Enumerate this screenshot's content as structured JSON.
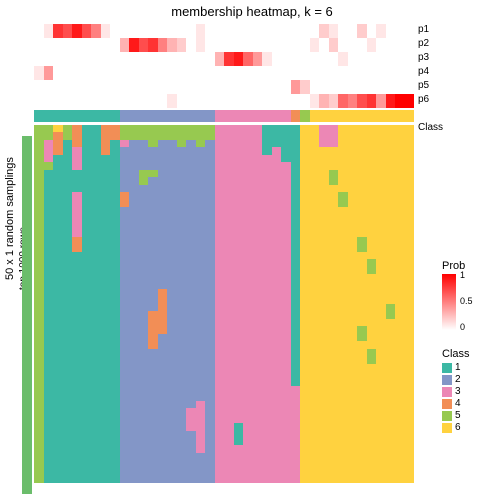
{
  "title": "membership heatmap, k = 6",
  "left_label_1": "50 x 1 random samplings",
  "left_label_2": "top 1000 rows",
  "p_labels": [
    "p1",
    "p2",
    "p3",
    "p4",
    "p5",
    "p6"
  ],
  "class_label": "Class",
  "prob_legend": {
    "title": "Prob",
    "ticks": [
      "1",
      "0.5",
      "0"
    ],
    "colors": [
      "#ff0000",
      "#ffffff"
    ]
  },
  "class_legend": {
    "title": "Class",
    "items": [
      {
        "label": "1",
        "color": "#3cb8a4"
      },
      {
        "label": "2",
        "color": "#8396c7"
      },
      {
        "label": "3",
        "color": "#ec87b5"
      },
      {
        "label": "4",
        "color": "#f28e56"
      },
      {
        "label": "5",
        "color": "#97c950"
      },
      {
        "label": "6",
        "color": "#ffd23f"
      }
    ]
  },
  "class_colors": [
    "#3cb8a4",
    "#8396c7",
    "#ec87b5",
    "#f28e56",
    "#97c950",
    "#ffd23f"
  ],
  "white": "#ffffff",
  "side_color": "#6bbd6b",
  "n_cols": 40,
  "n_rows": 48,
  "class_band": [
    0,
    0,
    0,
    0,
    0,
    0,
    0,
    0,
    0,
    1,
    1,
    1,
    1,
    1,
    1,
    1,
    1,
    1,
    1,
    2,
    2,
    2,
    2,
    2,
    2,
    2,
    2,
    3,
    4,
    5,
    5,
    5,
    5,
    5,
    5,
    5,
    5,
    5,
    5,
    5
  ],
  "p_matrix": [
    [
      0,
      0.1,
      0.8,
      0.7,
      0.9,
      0.7,
      0.5,
      0.1,
      0,
      0,
      0,
      0,
      0,
      0,
      0,
      0,
      0,
      0.1,
      0,
      0,
      0,
      0,
      0,
      0,
      0,
      0,
      0,
      0,
      0,
      0,
      0.2,
      0.1,
      0,
      0,
      0.2,
      0,
      0.1,
      0,
      0,
      0
    ],
    [
      0,
      0,
      0,
      0,
      0,
      0,
      0,
      0,
      0,
      0.3,
      0.9,
      0.7,
      0.8,
      0.5,
      0.3,
      0.2,
      0,
      0.1,
      0,
      0,
      0,
      0,
      0,
      0,
      0,
      0,
      0,
      0,
      0,
      0.1,
      0,
      0.2,
      0,
      0,
      0,
      0.1,
      0,
      0,
      0,
      0
    ],
    [
      0,
      0,
      0,
      0,
      0,
      0,
      0,
      0,
      0,
      0,
      0,
      0,
      0,
      0,
      0,
      0,
      0,
      0,
      0,
      0.3,
      0.8,
      0.9,
      0.6,
      0.4,
      0.1,
      0,
      0,
      0,
      0,
      0,
      0,
      0,
      0.1,
      0,
      0,
      0,
      0,
      0,
      0,
      0
    ],
    [
      0.1,
      0.4,
      0,
      0,
      0,
      0,
      0,
      0,
      0,
      0,
      0,
      0,
      0,
      0,
      0,
      0,
      0,
      0,
      0,
      0,
      0,
      0,
      0,
      0,
      0,
      0,
      0,
      0,
      0,
      0,
      0,
      0,
      0,
      0,
      0,
      0,
      0,
      0,
      0,
      0
    ],
    [
      0,
      0,
      0,
      0,
      0,
      0,
      0,
      0,
      0,
      0,
      0,
      0,
      0,
      0,
      0,
      0,
      0,
      0,
      0,
      0,
      0,
      0,
      0,
      0,
      0,
      0,
      0,
      0.4,
      0.2,
      0,
      0,
      0,
      0,
      0,
      0,
      0,
      0,
      0,
      0,
      0
    ],
    [
      0,
      0,
      0,
      0,
      0,
      0,
      0,
      0,
      0,
      0,
      0,
      0,
      0,
      0,
      0.1,
      0,
      0,
      0,
      0,
      0,
      0,
      0,
      0,
      0,
      0,
      0,
      0,
      0,
      0,
      0.1,
      0.3,
      0.2,
      0.6,
      0.5,
      0.7,
      0.8,
      0.4,
      0.9,
      1.0,
      1.0
    ]
  ],
  "heatmap_cols": [
    {
      "base": 4,
      "runs": [
        [
          0,
          48,
          4
        ]
      ]
    },
    {
      "base": 0,
      "runs": [
        [
          0,
          2,
          4
        ],
        [
          2,
          5,
          2
        ],
        [
          5,
          6,
          4
        ],
        [
          6,
          48,
          0
        ]
      ]
    },
    {
      "base": 0,
      "runs": [
        [
          0,
          1,
          5
        ],
        [
          1,
          4,
          3
        ],
        [
          4,
          48,
          0
        ]
      ]
    },
    {
      "base": 0,
      "runs": [
        [
          0,
          2,
          4
        ],
        [
          2,
          48,
          0
        ]
      ]
    },
    {
      "base": 0,
      "runs": [
        [
          0,
          3,
          3
        ],
        [
          3,
          6,
          2
        ],
        [
          6,
          9,
          0
        ],
        [
          9,
          15,
          2
        ],
        [
          15,
          17,
          3
        ],
        [
          17,
          48,
          0
        ]
      ]
    },
    {
      "base": 0,
      "runs": [
        [
          0,
          48,
          0
        ]
      ]
    },
    {
      "base": 0,
      "runs": [
        [
          0,
          48,
          0
        ]
      ]
    },
    {
      "base": 0,
      "runs": [
        [
          0,
          4,
          3
        ],
        [
          4,
          48,
          0
        ]
      ]
    },
    {
      "base": 0,
      "runs": [
        [
          0,
          2,
          3
        ],
        [
          2,
          48,
          0
        ]
      ]
    },
    {
      "base": 1,
      "runs": [
        [
          0,
          2,
          4
        ],
        [
          2,
          3,
          2
        ],
        [
          3,
          9,
          1
        ],
        [
          9,
          11,
          3
        ],
        [
          11,
          48,
          1
        ]
      ]
    },
    {
      "base": 1,
      "runs": [
        [
          0,
          2,
          4
        ],
        [
          2,
          48,
          1
        ]
      ]
    },
    {
      "base": 1,
      "runs": [
        [
          0,
          2,
          4
        ],
        [
          2,
          6,
          1
        ],
        [
          6,
          8,
          4
        ],
        [
          8,
          48,
          1
        ]
      ]
    },
    {
      "base": 1,
      "runs": [
        [
          0,
          3,
          4
        ],
        [
          3,
          6,
          1
        ],
        [
          6,
          7,
          4
        ],
        [
          7,
          25,
          1
        ],
        [
          25,
          30,
          3
        ],
        [
          30,
          48,
          1
        ]
      ]
    },
    {
      "base": 1,
      "runs": [
        [
          0,
          2,
          4
        ],
        [
          2,
          22,
          1
        ],
        [
          22,
          28,
          3
        ],
        [
          28,
          48,
          1
        ]
      ]
    },
    {
      "base": 1,
      "runs": [
        [
          0,
          2,
          4
        ],
        [
          2,
          48,
          1
        ]
      ]
    },
    {
      "base": 1,
      "runs": [
        [
          0,
          3,
          4
        ],
        [
          3,
          48,
          1
        ]
      ]
    },
    {
      "base": 1,
      "runs": [
        [
          0,
          2,
          4
        ],
        [
          2,
          38,
          1
        ],
        [
          38,
          41,
          2
        ],
        [
          41,
          48,
          1
        ]
      ]
    },
    {
      "base": 1,
      "runs": [
        [
          0,
          3,
          4
        ],
        [
          3,
          37,
          1
        ],
        [
          37,
          44,
          2
        ],
        [
          44,
          48,
          1
        ]
      ]
    },
    {
      "base": 1,
      "runs": [
        [
          0,
          2,
          4
        ],
        [
          2,
          48,
          1
        ]
      ]
    },
    {
      "base": 2,
      "runs": [
        [
          0,
          48,
          2
        ]
      ]
    },
    {
      "base": 2,
      "runs": [
        [
          0,
          48,
          2
        ]
      ]
    },
    {
      "base": 2,
      "runs": [
        [
          0,
          40,
          2
        ],
        [
          40,
          43,
          0
        ],
        [
          43,
          48,
          2
        ]
      ]
    },
    {
      "base": 2,
      "runs": [
        [
          0,
          48,
          2
        ]
      ]
    },
    {
      "base": 2,
      "runs": [
        [
          0,
          48,
          2
        ]
      ]
    },
    {
      "base": 2,
      "runs": [
        [
          0,
          4,
          0
        ],
        [
          4,
          48,
          2
        ]
      ]
    },
    {
      "base": 2,
      "runs": [
        [
          0,
          3,
          0
        ],
        [
          3,
          48,
          2
        ]
      ]
    },
    {
      "base": 2,
      "runs": [
        [
          0,
          5,
          0
        ],
        [
          5,
          48,
          2
        ]
      ]
    },
    {
      "base": 3,
      "runs": [
        [
          0,
          35,
          0
        ],
        [
          35,
          48,
          2
        ]
      ]
    },
    {
      "base": 4,
      "runs": [
        [
          0,
          48,
          5
        ]
      ]
    },
    {
      "base": 5,
      "runs": [
        [
          0,
          48,
          5
        ]
      ]
    },
    {
      "base": 5,
      "runs": [
        [
          0,
          3,
          2
        ],
        [
          3,
          48,
          5
        ]
      ]
    },
    {
      "base": 5,
      "runs": [
        [
          0,
          3,
          2
        ],
        [
          3,
          6,
          5
        ],
        [
          6,
          8,
          4
        ],
        [
          8,
          48,
          5
        ]
      ]
    },
    {
      "base": 5,
      "runs": [
        [
          0,
          9,
          5
        ],
        [
          9,
          11,
          4
        ],
        [
          11,
          48,
          5
        ]
      ]
    },
    {
      "base": 5,
      "runs": [
        [
          0,
          48,
          5
        ]
      ]
    },
    {
      "base": 5,
      "runs": [
        [
          0,
          15,
          5
        ],
        [
          15,
          17,
          4
        ],
        [
          17,
          27,
          5
        ],
        [
          27,
          29,
          4
        ],
        [
          29,
          48,
          5
        ]
      ]
    },
    {
      "base": 5,
      "runs": [
        [
          0,
          18,
          5
        ],
        [
          18,
          20,
          4
        ],
        [
          20,
          30,
          5
        ],
        [
          30,
          32,
          4
        ],
        [
          32,
          48,
          5
        ]
      ]
    },
    {
      "base": 5,
      "runs": [
        [
          0,
          48,
          5
        ]
      ]
    },
    {
      "base": 5,
      "runs": [
        [
          0,
          24,
          5
        ],
        [
          24,
          26,
          4
        ],
        [
          26,
          48,
          5
        ]
      ]
    },
    {
      "base": 5,
      "runs": [
        [
          0,
          48,
          5
        ]
      ]
    },
    {
      "base": 5,
      "runs": [
        [
          0,
          48,
          5
        ]
      ]
    }
  ]
}
